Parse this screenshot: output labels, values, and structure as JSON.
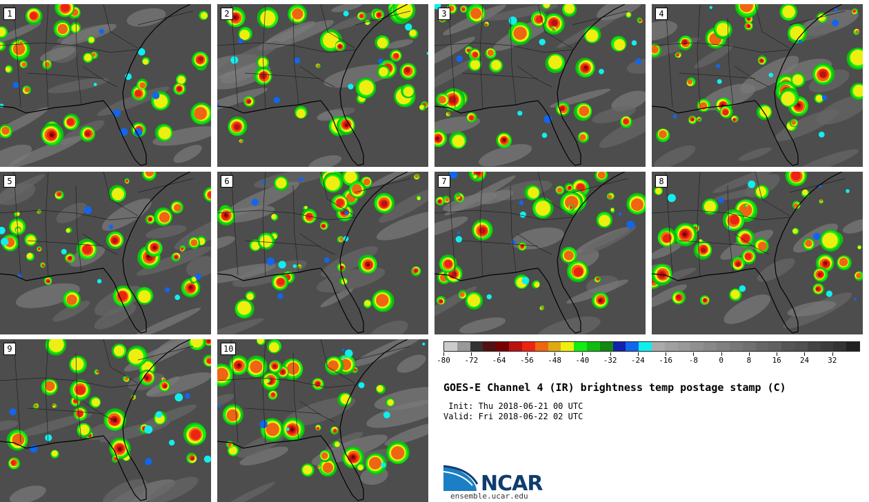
{
  "panels": [
    {
      "label": "1"
    },
    {
      "label": "2"
    },
    {
      "label": "3"
    },
    {
      "label": "4"
    },
    {
      "label": "5"
    },
    {
      "label": "6"
    },
    {
      "label": "7"
    },
    {
      "label": "8"
    },
    {
      "label": "9"
    },
    {
      "label": "10"
    }
  ],
  "colorbar": {
    "colors": [
      "#cccccc",
      "#999999",
      "#333333",
      "#551111",
      "#770000",
      "#bb1111",
      "#ee2211",
      "#ee6611",
      "#ddaa11",
      "#eeee11",
      "#11ee11",
      "#11bb11",
      "#118811",
      "#1122aa",
      "#1166ee",
      "#11eeee",
      "#aaaaaa",
      "#a0a0a0",
      "#999999",
      "#909090",
      "#888888",
      "#808080",
      "#777777",
      "#707070",
      "#666666",
      "#606060",
      "#555555",
      "#505050",
      "#444444",
      "#3c3c3c",
      "#333333",
      "#222222"
    ],
    "ticks": [
      "-80",
      "-72",
      "-64",
      "-56",
      "-48",
      "-40",
      "-32",
      "-24",
      "-16",
      "-8",
      "0",
      "8",
      "16",
      "24",
      "32"
    ]
  },
  "title": "GOES-E Channel 4 (IR) brightness temp postage stamp (C)",
  "init": " Init: Thu 2018-06-21 00 UTC",
  "valid": "Valid: Fri 2018-06-22 02 UTC",
  "logo": {
    "text": "NCAR",
    "url": "ensemble.ucar.edu"
  }
}
